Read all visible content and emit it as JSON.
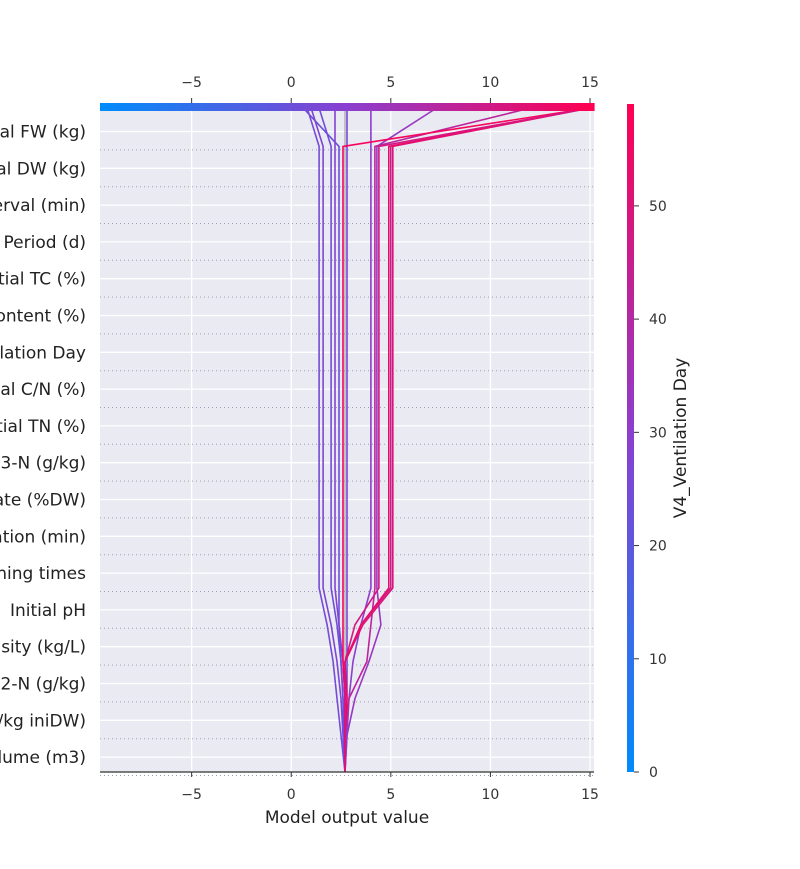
{
  "chart_data": {
    "type": "line",
    "title": "",
    "xlabel": "Model output value",
    "xlim": [
      -9.6,
      15.2
    ],
    "xticks": [
      -5,
      0,
      5,
      10,
      15
    ],
    "base_value": 2.7,
    "features": [
      "al FW (kg)",
      "al DW (kg)",
      "erval (min)",
      "Period (d)",
      "tial TC (%)",
      "ontent (%)",
      "lation Day",
      "al C/N (%)",
      "tial TN (%)",
      "3-N (g/kg)",
      "ate (%DW)",
      "ation (min)",
      "ning times",
      "Initial pH",
      "sity (kg/L)",
      "2-N (g/kg)",
      "/kg iniDW)",
      "lume (m3)"
    ],
    "colorbar": {
      "label": "V4_Ventilation Day",
      "min": 0,
      "max": 59,
      "ticks": [
        0,
        10,
        20,
        30,
        40,
        50
      ],
      "low_color": "#008bfb",
      "high_color": "#ff0052"
    },
    "series": [
      {
        "color_value": 26,
        "values": [
          2.7,
          2.75,
          2.8,
          2.8,
          2.8,
          2.8,
          2.8,
          2.8,
          2.8,
          2.8,
          2.8,
          2.8,
          2.8,
          2.8,
          2.8,
          2.8,
          2.8,
          2.8,
          2.8
        ]
      },
      {
        "color_value": 23,
        "values": [
          2.7,
          2.65,
          2.6,
          2.5,
          2.4,
          2.4,
          2.4,
          2.4,
          2.4,
          2.4,
          2.4,
          2.4,
          2.4,
          2.4,
          2.4,
          2.4,
          2.4,
          2.4,
          0.6
        ]
      },
      {
        "color_value": 25,
        "values": [
          2.7,
          2.5,
          2.3,
          2.1,
          1.8,
          1.4,
          1.4,
          1.4,
          1.4,
          1.4,
          1.4,
          1.4,
          1.4,
          1.4,
          1.4,
          1.4,
          1.4,
          1.4,
          0.8
        ]
      },
      {
        "color_value": 27,
        "values": [
          2.7,
          2.6,
          2.5,
          2.3,
          2.0,
          1.6,
          1.6,
          1.6,
          1.6,
          1.6,
          1.6,
          1.6,
          1.6,
          1.6,
          1.6,
          1.6,
          1.6,
          1.6,
          1.0
        ]
      },
      {
        "color_value": 28,
        "values": [
          2.7,
          2.7,
          2.7,
          2.6,
          2.4,
          2.2,
          2.2,
          2.2,
          2.2,
          2.2,
          2.2,
          2.2,
          2.2,
          2.2,
          2.2,
          2.2,
          2.2,
          2.2,
          2.2
        ]
      },
      {
        "color_value": 24,
        "values": [
          2.7,
          2.65,
          2.6,
          2.5,
          2.3,
          2.0,
          2.0,
          2.0,
          2.0,
          2.0,
          2.0,
          2.0,
          2.0,
          2.0,
          2.0,
          2.0,
          2.0,
          2.0,
          1.4
        ]
      },
      {
        "color_value": 30,
        "values": [
          2.7,
          2.8,
          2.9,
          3.1,
          3.5,
          4.0,
          4.0,
          4.0,
          4.0,
          4.0,
          4.0,
          4.0,
          4.0,
          4.0,
          4.0,
          4.0,
          4.0,
          4.0,
          4.0
        ]
      },
      {
        "color_value": 33,
        "values": [
          2.7,
          2.8,
          3.2,
          3.9,
          4.5,
          4.3,
          4.3,
          4.3,
          4.3,
          4.3,
          4.3,
          4.3,
          4.3,
          4.3,
          4.3,
          4.3,
          4.3,
          4.3,
          7.3
        ]
      },
      {
        "color_value": 42,
        "values": [
          2.7,
          2.7,
          2.9,
          3.8,
          4.0,
          4.2,
          4.2,
          4.2,
          4.2,
          4.2,
          4.2,
          4.2,
          4.2,
          4.2,
          4.2,
          4.2,
          4.2,
          4.2,
          12.0
        ]
      },
      {
        "color_value": 45,
        "values": [
          2.7,
          2.7,
          2.7,
          2.7,
          3.5,
          5.0,
          5.0,
          5.0,
          5.0,
          5.0,
          5.0,
          5.0,
          5.0,
          5.0,
          5.0,
          5.0,
          5.0,
          5.0,
          15.0
        ]
      },
      {
        "color_value": 50,
        "values": [
          2.7,
          2.7,
          2.7,
          2.7,
          3.6,
          5.1,
          5.1,
          5.1,
          5.1,
          5.1,
          5.1,
          5.1,
          5.1,
          5.1,
          5.1,
          5.1,
          5.1,
          5.1,
          15.0
        ]
      },
      {
        "color_value": 54,
        "values": [
          2.7,
          2.7,
          2.8,
          2.7,
          3.5,
          4.9,
          4.9,
          4.9,
          4.9,
          4.9,
          4.9,
          4.9,
          4.9,
          4.9,
          4.9,
          4.9,
          4.9,
          4.9,
          15.0
        ]
      },
      {
        "color_value": 57,
        "values": [
          2.7,
          2.7,
          2.7,
          2.6,
          2.6,
          2.6,
          2.6,
          2.6,
          2.6,
          2.6,
          2.6,
          2.6,
          2.6,
          2.6,
          2.6,
          2.6,
          2.6,
          2.6,
          15.0
        ]
      },
      {
        "color_value": 48,
        "values": [
          2.7,
          2.7,
          2.7,
          2.7,
          3.2,
          4.4,
          4.4,
          4.4,
          4.4,
          4.4,
          4.4,
          4.4,
          4.4,
          4.4,
          4.4,
          4.4,
          4.4,
          4.4,
          15.0
        ]
      }
    ]
  }
}
